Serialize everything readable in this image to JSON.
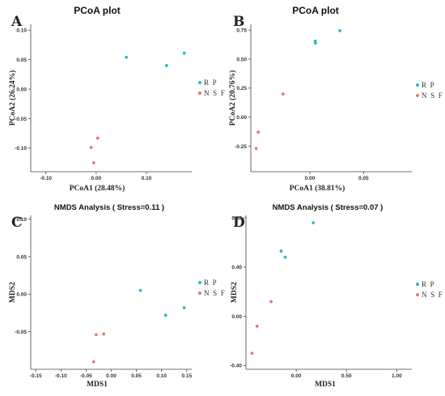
{
  "colors": {
    "RP": "#1fbfc4",
    "NSF": "#f0746c"
  },
  "chart_data": [
    {
      "panel": "A",
      "type": "scatter",
      "title": "PCoA plot",
      "xlabel": "PCoA1 (28.48%)",
      "ylabel": "PCoA2 (26.24%)",
      "xlim": [
        -0.13,
        0.19
      ],
      "ylim": [
        -0.14,
        0.11
      ],
      "xticks": [
        -0.1,
        0.0,
        0.1
      ],
      "xtick_labels": [
        "-0.10",
        "0.00",
        "0.10"
      ],
      "yticks": [
        -0.1,
        -0.05,
        0.0,
        0.05,
        0.1
      ],
      "ytick_labels": [
        "-0.10",
        "-0.05",
        "0.00",
        "0.05",
        "0.10"
      ],
      "legend": "right",
      "series": [
        {
          "name": "R P",
          "color": "#1fbfc4",
          "points": [
            [
              0.06,
              0.054
            ],
            [
              0.14,
              0.04
            ],
            [
              0.175,
              0.061
            ]
          ]
        },
        {
          "name": "N S F",
          "color": "#f0746c",
          "points": [
            [
              -0.01,
              -0.099
            ],
            [
              0.003,
              -0.083
            ],
            [
              -0.005,
              -0.125
            ]
          ]
        }
      ]
    },
    {
      "panel": "B",
      "type": "scatter",
      "title": "PCoA plot",
      "xlabel": "PCoA1 (38.81%)",
      "ylabel": "PCoA2 (20.76%)",
      "xlim": [
        -0.055,
        0.095
      ],
      "ylim": [
        -0.47,
        0.8
      ],
      "xticks": [
        0.0,
        0.05
      ],
      "xtick_labels": [
        "0.00",
        "0.05"
      ],
      "yticks": [
        -0.25,
        0.0,
        0.25,
        0.5,
        0.75
      ],
      "ytick_labels": [
        "-0.25",
        "0.00",
        "0.25",
        "0.50",
        "0.75"
      ],
      "legend": "right",
      "series": [
        {
          "name": "R P",
          "color": "#1fbfc4",
          "points": [
            [
              0.005,
              0.655
            ],
            [
              0.0052,
              0.638
            ],
            [
              0.028,
              0.745
            ]
          ]
        },
        {
          "name": "N S F",
          "color": "#f0746c",
          "points": [
            [
              -0.048,
              -0.13
            ],
            [
              -0.05,
              -0.27
            ],
            [
              -0.025,
              0.2
            ]
          ]
        }
      ]
    },
    {
      "panel": "C",
      "type": "scatter",
      "title": "NMDS Analysis ( Stress=0.11 )",
      "xlabel": "MDS1",
      "ylabel": "MDS2",
      "xlim": [
        -0.16,
        0.16
      ],
      "ylim": [
        -0.1,
        0.105
      ],
      "xticks": [
        -0.15,
        -0.1,
        -0.05,
        0.0,
        0.05,
        0.1,
        0.15
      ],
      "xtick_labels": [
        "-0.15",
        "-0.10",
        "-0.05",
        "0.00",
        "0.05",
        "0.10",
        "0.15"
      ],
      "yticks": [
        -0.05,
        0.0,
        0.05,
        0.1
      ],
      "ytick_labels": [
        "-0.05",
        "0.00",
        "0.05",
        "0.10"
      ],
      "legend": "right",
      "series": [
        {
          "name": "R P",
          "color": "#1fbfc4",
          "points": [
            [
              0.058,
              0.005
            ],
            [
              0.108,
              -0.028
            ],
            [
              0.145,
              -0.018
            ]
          ]
        },
        {
          "name": "N S F",
          "color": "#f0746c",
          "points": [
            [
              -0.03,
              -0.054
            ],
            [
              -0.015,
              -0.053
            ],
            [
              -0.035,
              -0.09
            ]
          ]
        }
      ]
    },
    {
      "panel": "D",
      "type": "scatter",
      "title": "NMDS Analysis ( Stress=0.07 )",
      "xlabel": "MDS1",
      "ylabel": "MDS2",
      "xlim": [
        -0.5,
        1.15
      ],
      "ylim": [
        -0.43,
        0.82
      ],
      "xticks": [
        0.0,
        0.5,
        1.0
      ],
      "xtick_labels": [
        "0.00",
        "0.50",
        "1.00"
      ],
      "yticks": [
        -0.4,
        0.0,
        0.4,
        0.8
      ],
      "ytick_labels": [
        "-0.40",
        "0.00",
        "0.40",
        "0.80"
      ],
      "legend": "right",
      "series": [
        {
          "name": "R P",
          "color": "#1fbfc4",
          "points": [
            [
              0.17,
              0.76
            ],
            [
              -0.15,
              0.53
            ],
            [
              -0.11,
              0.48
            ]
          ]
        },
        {
          "name": "N S F",
          "color": "#f0746c",
          "points": [
            [
              -0.25,
              0.12
            ],
            [
              -0.39,
              -0.08
            ],
            [
              -0.44,
              -0.3
            ]
          ]
        }
      ]
    }
  ]
}
